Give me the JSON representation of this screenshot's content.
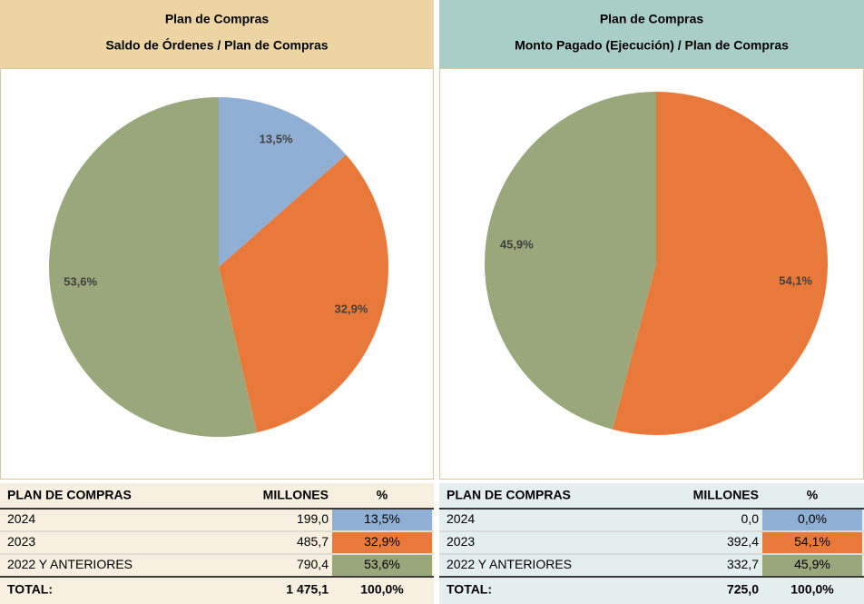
{
  "chart_data": [
    {
      "type": "pie",
      "title": "Plan de Compras",
      "subtitle": "Saldo de Órdenes / Plan de Compras",
      "values": [
        13.5,
        32.9,
        53.6
      ],
      "value_labels": [
        "13,5%",
        "32,9%",
        "53,6%"
      ],
      "colors": [
        "#8fb0d4",
        "#e8793a",
        "#9aa77a"
      ],
      "header_color": "#ecd5a3",
      "table_color": "#f7efdf"
    },
    {
      "type": "pie",
      "title": "Plan de Compras",
      "subtitle": "Monto Pagado (Ejecución) / Plan de Compras",
      "values": [
        54.1,
        45.9
      ],
      "value_labels": [
        "54,1%",
        "45,9%"
      ],
      "colors": [
        "#e8793a",
        "#9aa77a"
      ],
      "header_color": "#a9cec8",
      "table_color": "#e4eeec"
    }
  ],
  "tables": [
    {
      "header": [
        "PLAN DE COMPRAS",
        "MILLONES",
        "%"
      ],
      "rows": [
        [
          "2024",
          "199,0",
          "13,5%"
        ],
        [
          "2023",
          "485,7",
          "32,9%"
        ],
        [
          "2022 Y ANTERIORES",
          "790,4",
          "53,6%"
        ]
      ],
      "total": [
        "TOTAL:",
        "1 475,1",
        "100,0%"
      ],
      "colors": [
        "#8fb0d4",
        "#e8793a",
        "#9aa77a"
      ]
    },
    {
      "header": [
        "PLAN DE COMPRAS",
        "MILLONES",
        "%"
      ],
      "rows": [
        [
          "2024",
          "0,0",
          "0,0%"
        ],
        [
          "2023",
          "392,4",
          "54,1%"
        ],
        [
          "2022 Y ANTERIORES",
          "332,7",
          "45,9%"
        ]
      ],
      "total": [
        "TOTAL:",
        "725,0",
        "100,0%"
      ],
      "colors": [
        "#8fb0d4",
        "#e8793a",
        "#9aa77a"
      ]
    }
  ]
}
